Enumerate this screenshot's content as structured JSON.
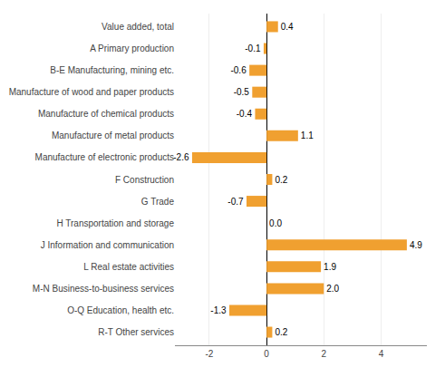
{
  "chart_data": {
    "type": "bar",
    "orientation": "horizontal",
    "categories": [
      "R-T Other services",
      "O-Q Education, health etc.",
      "M-N Business-to-business services",
      "L Real estate activities",
      "J Information and communication",
      "H Transportation and storage",
      "G Trade",
      "F Construction",
      "Manufacture of electronic products",
      "Manufacture of metal products",
      "Manufacture of chemical products",
      "Manufacture of wood and paper products",
      "B-E Manufacturing, mining etc.",
      "A Primary production",
      "Value added, total"
    ],
    "values": [
      0.2,
      -1.3,
      2.0,
      1.9,
      4.9,
      0.0,
      -0.7,
      0.2,
      -2.6,
      1.1,
      -0.4,
      -0.5,
      -0.6,
      -0.1,
      0.4
    ],
    "value_labels": [
      "0.2",
      "-1.3",
      "2.0",
      "1.9",
      "4.9",
      "0.0",
      "-0.7",
      "0.2",
      "-2.6",
      "1.1",
      "-0.4",
      "-0.5",
      "-0.6",
      "-0.1",
      "0.4"
    ],
    "data_labels": true,
    "color": "#F0A030",
    "xlim": [
      -3.2,
      5.6
    ],
    "xticks": [
      -2,
      0,
      2,
      4
    ],
    "grid": true
  }
}
